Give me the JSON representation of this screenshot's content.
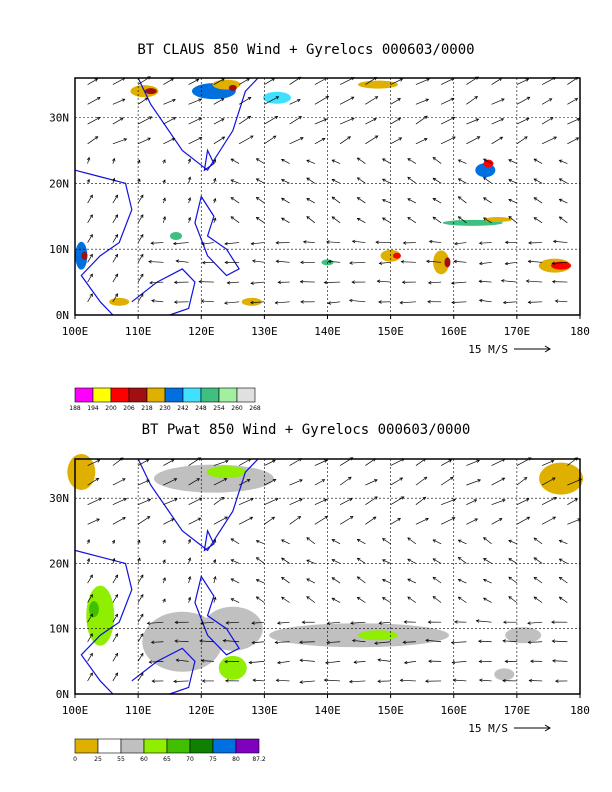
{
  "panels": [
    {
      "title": "BT CLAUS 850 Wind + Gyrelocs 000603/0000",
      "variable": "CLAUS brightness temperature",
      "xticks": [
        "100E",
        "110E",
        "120E",
        "130E",
        "140E",
        "150E",
        "160E",
        "170E",
        "180"
      ],
      "yticks": [
        "0N",
        "10N",
        "20N",
        "30N"
      ],
      "vector_ref": "15 M/S",
      "colorbar": {
        "colors": [
          "#ff00ff",
          "#ffff00",
          "#ff0000",
          "#a01010",
          "#e0b000",
          "#0070e0",
          "#40e0ff",
          "#40c080",
          "#a0f0a0",
          "#e0e0e0"
        ],
        "labels": [
          "188",
          "194",
          "200",
          "206",
          "218",
          "230",
          "242",
          "248",
          "254",
          "260",
          "268"
        ]
      }
    },
    {
      "title": "BT Pwat 850 Wind + Gyrelocs 000603/0000",
      "variable": "Precipitable water",
      "xticks": [
        "100E",
        "110E",
        "120E",
        "130E",
        "140E",
        "150E",
        "160E",
        "170E",
        "180"
      ],
      "yticks": [
        "0N",
        "10N",
        "20N",
        "30N"
      ],
      "vector_ref": "15 M/S",
      "colorbar": {
        "colors": [
          "#e0b000",
          "#ffffff",
          "#c0c0c0",
          "#90ee00",
          "#40c000",
          "#108000",
          "#0070e0",
          "#8000c0"
        ],
        "labels": [
          "0",
          "25",
          "55",
          "60",
          "65",
          "70",
          "75",
          "80",
          "87.2"
        ]
      }
    }
  ],
  "chart_data": [
    {
      "type": "heatmap",
      "title": "BT CLAUS 850 Wind + Gyrelocs 000603/0000",
      "x_range": [
        100,
        180
      ],
      "y_range": [
        0,
        36
      ],
      "xticks": [
        "100E",
        "110E",
        "120E",
        "130E",
        "140E",
        "150E",
        "160E",
        "170E",
        "180"
      ],
      "yticks": [
        "0N",
        "10N",
        "20N",
        "30N"
      ],
      "legend_levels": [
        188,
        194,
        200,
        206,
        218,
        230,
        242,
        248,
        254,
        260,
        268
      ],
      "vector_reference": "15 M/S",
      "grid": true
    },
    {
      "type": "heatmap",
      "title": "BT Pwat 850 Wind + Gyrelocs 000603/0000",
      "x_range": [
        100,
        180
      ],
      "y_range": [
        0,
        36
      ],
      "xticks": [
        "100E",
        "110E",
        "120E",
        "130E",
        "140E",
        "150E",
        "160E",
        "170E",
        "180"
      ],
      "yticks": [
        "0N",
        "10N",
        "20N",
        "30N"
      ],
      "legend_levels": [
        0,
        25,
        55,
        60,
        65,
        70,
        75,
        80,
        87.2
      ],
      "vector_reference": "15 M/S",
      "grid": true
    }
  ]
}
